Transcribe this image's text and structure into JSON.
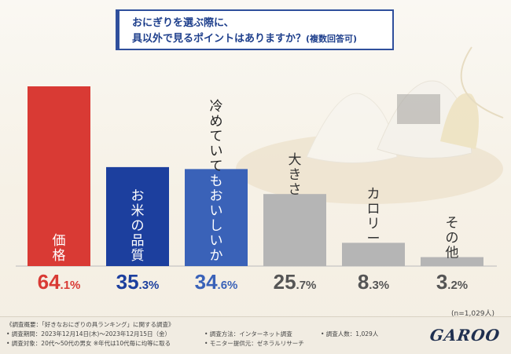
{
  "title": {
    "line1": "おにぎりを選ぶ際に、",
    "line2": "具以外で見るポイントはありますか？",
    "suffix": "(複数回答可)"
  },
  "chart_data": {
    "type": "bar",
    "title": "おにぎりを選ぶ際に、具以外で見るポイントはありますか？(複数回答可)",
    "categories": [
      "価格",
      "お米の品質",
      "冷めていてもおいしいか",
      "大きさ",
      "カロリー",
      "その他"
    ],
    "values": [
      64.1,
      35.3,
      34.6,
      25.7,
      8.3,
      3.2
    ],
    "value_labels": [
      {
        "int": "64",
        "dec": ".1%"
      },
      {
        "int": "35",
        "dec": ".3%"
      },
      {
        "int": "34",
        "dec": ".6%"
      },
      {
        "int": "25",
        "dec": ".7%"
      },
      {
        "int": "8",
        "dec": ".3%"
      },
      {
        "int": "3",
        "dec": ".2%"
      }
    ],
    "colors": [
      "#d93a34",
      "#1c3f9e",
      "#3a62b8",
      "#b5b5b5",
      "#b5b5b5",
      "#b5b5b5"
    ],
    "value_colors": [
      "#d93a34",
      "#1c3f9e",
      "#3a62b8",
      "#555555",
      "#555555",
      "#555555"
    ],
    "ylim": [
      0,
      64.1
    ],
    "xlabel": "",
    "ylabel": ""
  },
  "sample_note": "(n=1,029人)",
  "footer": {
    "overview": "《調査概要：「好きなおにぎりの具ランキング」に関する調査》",
    "period": "• 調査期間：2023年12月14日(木)～2023年12月15日（金）",
    "target": "• 調査対象：20代～50代の男女 ※年代は10代毎に均等に取る",
    "method": "• 調査方法：インターネット調査",
    "provider": "• モニター提供元：ゼネラルリサーチ",
    "count": "• 調査人数：1,029人",
    "logo": "GAROO"
  }
}
